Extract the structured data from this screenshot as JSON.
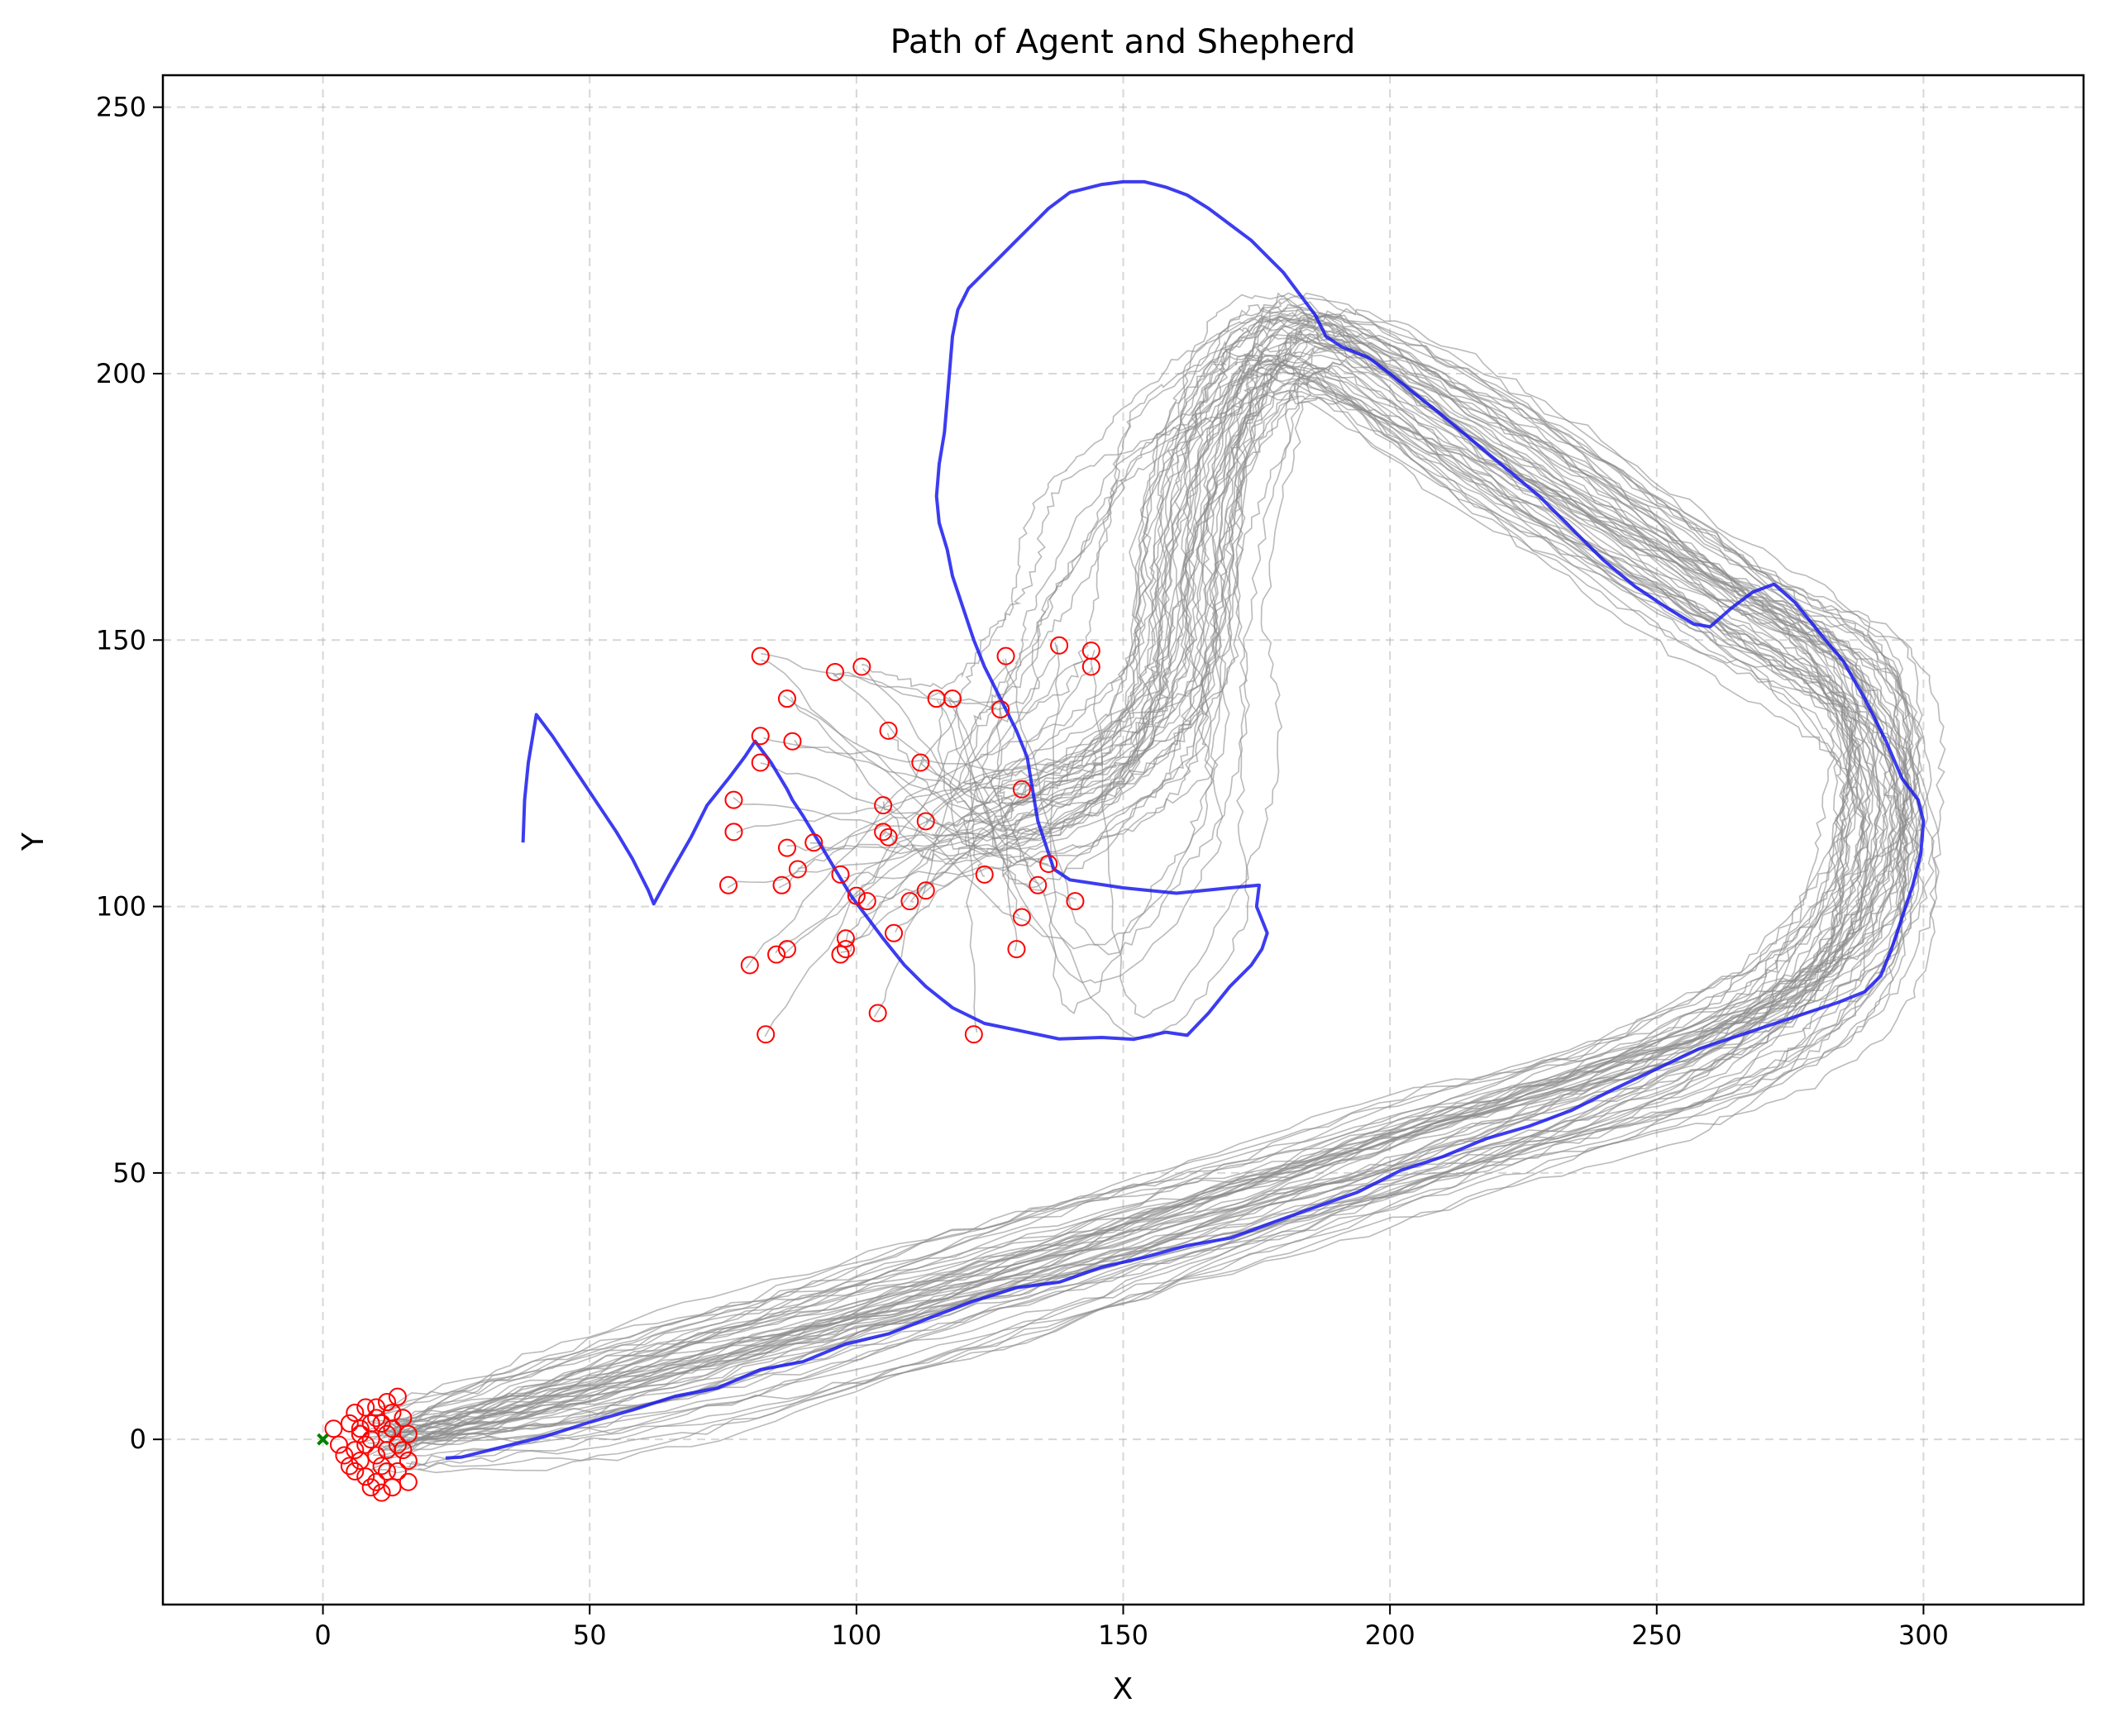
{
  "chart_data": {
    "type": "line",
    "title": "Path of Agent and Shepherd",
    "xlabel": "X",
    "ylabel": "Y",
    "xlim": [
      -30,
      330
    ],
    "ylim": [
      -31,
      256
    ],
    "xticks": [
      0,
      50,
      100,
      150,
      200,
      250,
      300
    ],
    "yticks": [
      0,
      50,
      100,
      150,
      200,
      250
    ],
    "grid": true,
    "colors": {
      "shepherd": "#1a1aee",
      "agents": "#8c8c8c",
      "agent_final": "#ff0000",
      "agent_start": "#008000"
    },
    "series": [
      {
        "kind": "shepherd-path",
        "points": [
          [
            37.5,
            112
          ],
          [
            37.8,
            120
          ],
          [
            38.5,
            127
          ],
          [
            40,
            136
          ],
          [
            43,
            132
          ],
          [
            47,
            126
          ],
          [
            51,
            120
          ],
          [
            55,
            114
          ],
          [
            58,
            109
          ],
          [
            61,
            103
          ],
          [
            62,
            100.5
          ],
          [
            65,
            106
          ],
          [
            69,
            113
          ],
          [
            72,
            119
          ],
          [
            76,
            124
          ],
          [
            79,
            128
          ],
          [
            81,
            131
          ],
          [
            84,
            127
          ],
          [
            87,
            122
          ],
          [
            88,
            120
          ],
          [
            90,
            117
          ],
          [
            93,
            112
          ],
          [
            96,
            107
          ],
          [
            99,
            102
          ],
          [
            102,
            98
          ],
          [
            105,
            94
          ],
          [
            109,
            89
          ],
          [
            113,
            85
          ],
          [
            118,
            81
          ],
          [
            124,
            78
          ],
          [
            130,
            76.5
          ],
          [
            138,
            75.5
          ],
          [
            146,
            75.5
          ],
          [
            152,
            75
          ],
          [
            158,
            77
          ],
          [
            162,
            76
          ],
          [
            166,
            80
          ],
          [
            170,
            85
          ],
          [
            174,
            89
          ],
          [
            176,
            92
          ],
          [
            177,
            95
          ],
          [
            175,
            100
          ],
          [
            175.5,
            104
          ],
          [
            170,
            103.5
          ],
          [
            160,
            102.5
          ],
          [
            150,
            103.5
          ],
          [
            140,
            105
          ],
          [
            137,
            107
          ],
          [
            136,
            110
          ],
          [
            134,
            116
          ],
          [
            133,
            122
          ],
          [
            132,
            128
          ],
          [
            130,
            133
          ],
          [
            127,
            139
          ],
          [
            124,
            145
          ],
          [
            122,
            150
          ],
          [
            120,
            156
          ],
          [
            118,
            162
          ],
          [
            117,
            167
          ],
          [
            115.5,
            172
          ],
          [
            115,
            177
          ],
          [
            115.5,
            183
          ],
          [
            116.5,
            189
          ],
          [
            117,
            195
          ],
          [
            117.5,
            201
          ],
          [
            118,
            207
          ],
          [
            119,
            212
          ],
          [
            121,
            216
          ],
          [
            124,
            219
          ],
          [
            127,
            222
          ],
          [
            130,
            225
          ],
          [
            133,
            228
          ],
          [
            136,
            231
          ],
          [
            140,
            234
          ],
          [
            146,
            235.5
          ],
          [
            150,
            236
          ],
          [
            154,
            236
          ],
          [
            158,
            235
          ],
          [
            162,
            233.5
          ],
          [
            166,
            231
          ],
          [
            170,
            228
          ],
          [
            174,
            225
          ],
          [
            177,
            222
          ],
          [
            180,
            219
          ],
          [
            183,
            215
          ],
          [
            186,
            211
          ],
          [
            188,
            207
          ],
          [
            191,
            205
          ],
          [
            196,
            203
          ],
          [
            200,
            200
          ],
          [
            205,
            196
          ],
          [
            210,
            192
          ],
          [
            216,
            187
          ],
          [
            222,
            182
          ],
          [
            228,
            177
          ],
          [
            234,
            171
          ],
          [
            240,
            165
          ],
          [
            246,
            160
          ],
          [
            252,
            156
          ],
          [
            257,
            153
          ],
          [
            260,
            152.5
          ],
          [
            264,
            156
          ],
          [
            268,
            159
          ],
          [
            272,
            160.5
          ],
          [
            276,
            157
          ],
          [
            280,
            152
          ],
          [
            285,
            146
          ],
          [
            289,
            139
          ],
          [
            293,
            131
          ],
          [
            296,
            124
          ],
          [
            299,
            120
          ],
          [
            300,
            116
          ],
          [
            299.5,
            110
          ],
          [
            298,
            104
          ],
          [
            296,
            98
          ],
          [
            294,
            92
          ],
          [
            292,
            87
          ],
          [
            289,
            84
          ],
          [
            284,
            82
          ],
          [
            278,
            80
          ],
          [
            272,
            78
          ],
          [
            266,
            76
          ],
          [
            258,
            73
          ],
          [
            250,
            69
          ],
          [
            242,
            66
          ],
          [
            234,
            62
          ],
          [
            226,
            59
          ],
          [
            218,
            56
          ],
          [
            210,
            53
          ],
          [
            202,
            50
          ],
          [
            194,
            46
          ],
          [
            186,
            43
          ],
          [
            178,
            41
          ],
          [
            170,
            38
          ],
          [
            162,
            36
          ],
          [
            154,
            34
          ],
          [
            146,
            32
          ],
          [
            138,
            30
          ],
          [
            130,
            28
          ],
          [
            122,
            26
          ],
          [
            114,
            23
          ],
          [
            106,
            20
          ],
          [
            98,
            18
          ],
          [
            90,
            15
          ],
          [
            82,
            13
          ],
          [
            74,
            10
          ],
          [
            66,
            8
          ],
          [
            58,
            5
          ],
          [
            50,
            3
          ],
          [
            42,
            1
          ],
          [
            34,
            -1
          ],
          [
            26,
            -3
          ],
          [
            23,
            -3.5
          ]
        ]
      }
    ],
    "agent_final_positions": [
      [
        82,
        147
      ],
      [
        96,
        144
      ],
      [
        101,
        145
      ],
      [
        87,
        139
      ],
      [
        115,
        139
      ],
      [
        118,
        139
      ],
      [
        128,
        147
      ],
      [
        138,
        149
      ],
      [
        144,
        148
      ],
      [
        144,
        145
      ],
      [
        82,
        132
      ],
      [
        88,
        131
      ],
      [
        82,
        127
      ],
      [
        106,
        133
      ],
      [
        112,
        127
      ],
      [
        127,
        137
      ],
      [
        131,
        122
      ],
      [
        77,
        120
      ],
      [
        105,
        119
      ],
      [
        77,
        114
      ],
      [
        92,
        112
      ],
      [
        105,
        114
      ],
      [
        106,
        113
      ],
      [
        113,
        116
      ],
      [
        87,
        111
      ],
      [
        89,
        107
      ],
      [
        97,
        106
      ],
      [
        76,
        104
      ],
      [
        86,
        104
      ],
      [
        100,
        102
      ],
      [
        102,
        101
      ],
      [
        110,
        101
      ],
      [
        113,
        103
      ],
      [
        124,
        106
      ],
      [
        134,
        104
      ],
      [
        136,
        108
      ],
      [
        141,
        101
      ],
      [
        98,
        94
      ],
      [
        107,
        95
      ],
      [
        131,
        98
      ],
      [
        87,
        92
      ],
      [
        85,
        91
      ],
      [
        98,
        92
      ],
      [
        97,
        91
      ],
      [
        80,
        89
      ],
      [
        130,
        92
      ],
      [
        83,
        76
      ],
      [
        104,
        80
      ],
      [
        122,
        76
      ],
      [
        2,
        2
      ],
      [
        3,
        -1
      ],
      [
        4,
        -3
      ],
      [
        5,
        -5
      ],
      [
        6,
        -2
      ],
      [
        5,
        3
      ],
      [
        6,
        5
      ],
      [
        7,
        1
      ],
      [
        8,
        6
      ],
      [
        7,
        -4
      ],
      [
        8,
        -7
      ],
      [
        9,
        -9
      ],
      [
        10,
        -8
      ],
      [
        11,
        -10
      ],
      [
        12,
        -6
      ],
      [
        12,
        -2
      ],
      [
        11,
        3
      ],
      [
        12,
        7
      ],
      [
        13,
        5
      ],
      [
        14,
        8
      ],
      [
        15,
        4
      ],
      [
        16,
        1
      ],
      [
        15,
        -2
      ],
      [
        16,
        -4
      ],
      [
        14,
        -6
      ],
      [
        16,
        -8
      ],
      [
        13,
        -9
      ],
      [
        10,
        4
      ],
      [
        9,
        0
      ],
      [
        10,
        -3
      ],
      [
        12,
        1
      ],
      [
        11,
        -5
      ],
      [
        8,
        -1
      ],
      [
        9,
        3
      ],
      [
        6,
        -6
      ],
      [
        13,
        2
      ],
      [
        14,
        -1
      ],
      [
        7,
        2
      ],
      [
        10,
        6
      ]
    ],
    "agent_start": [
      0,
      0
    ],
    "agent_traces": [
      {
        "count": 44,
        "waypoints": [
          [
            12,
            0
          ],
          [
            60,
            10
          ],
          [
            130,
            30
          ],
          [
            200,
            52
          ],
          [
            260,
            72
          ],
          [
            285,
            90
          ],
          [
            293,
            115
          ],
          [
            288,
            140
          ],
          [
            262,
            158
          ],
          [
            218,
            186
          ],
          [
            185,
            205
          ],
          [
            172,
            195
          ],
          [
            163,
            170
          ],
          [
            160,
            142
          ],
          [
            148,
            125
          ],
          [
            125,
            115
          ],
          [
            100,
            108
          ]
        ]
      },
      {
        "count": 8,
        "waypoints": [
          [
            12,
            0
          ],
          [
            60,
            10
          ],
          [
            130,
            30
          ],
          [
            200,
            52
          ],
          [
            260,
            72
          ],
          [
            285,
            90
          ],
          [
            293,
            115
          ],
          [
            288,
            140
          ],
          [
            262,
            158
          ],
          [
            218,
            186
          ],
          [
            185,
            205
          ],
          [
            168,
            200
          ],
          [
            150,
            185
          ],
          [
            140,
            168
          ],
          [
            132,
            150
          ],
          [
            120,
            135
          ],
          [
            100,
            120
          ]
        ]
      },
      {
        "count": 6,
        "waypoints": [
          [
            12,
            0
          ],
          [
            60,
            10
          ],
          [
            130,
            30
          ],
          [
            200,
            52
          ],
          [
            260,
            72
          ],
          [
            285,
            90
          ],
          [
            293,
            115
          ],
          [
            288,
            140
          ],
          [
            262,
            158
          ],
          [
            218,
            186
          ],
          [
            185,
            205
          ],
          [
            175,
            188
          ],
          [
            172,
            160
          ],
          [
            170,
            130
          ],
          [
            165,
            105
          ],
          [
            145,
            85
          ],
          [
            120,
            78
          ]
        ]
      }
    ]
  }
}
